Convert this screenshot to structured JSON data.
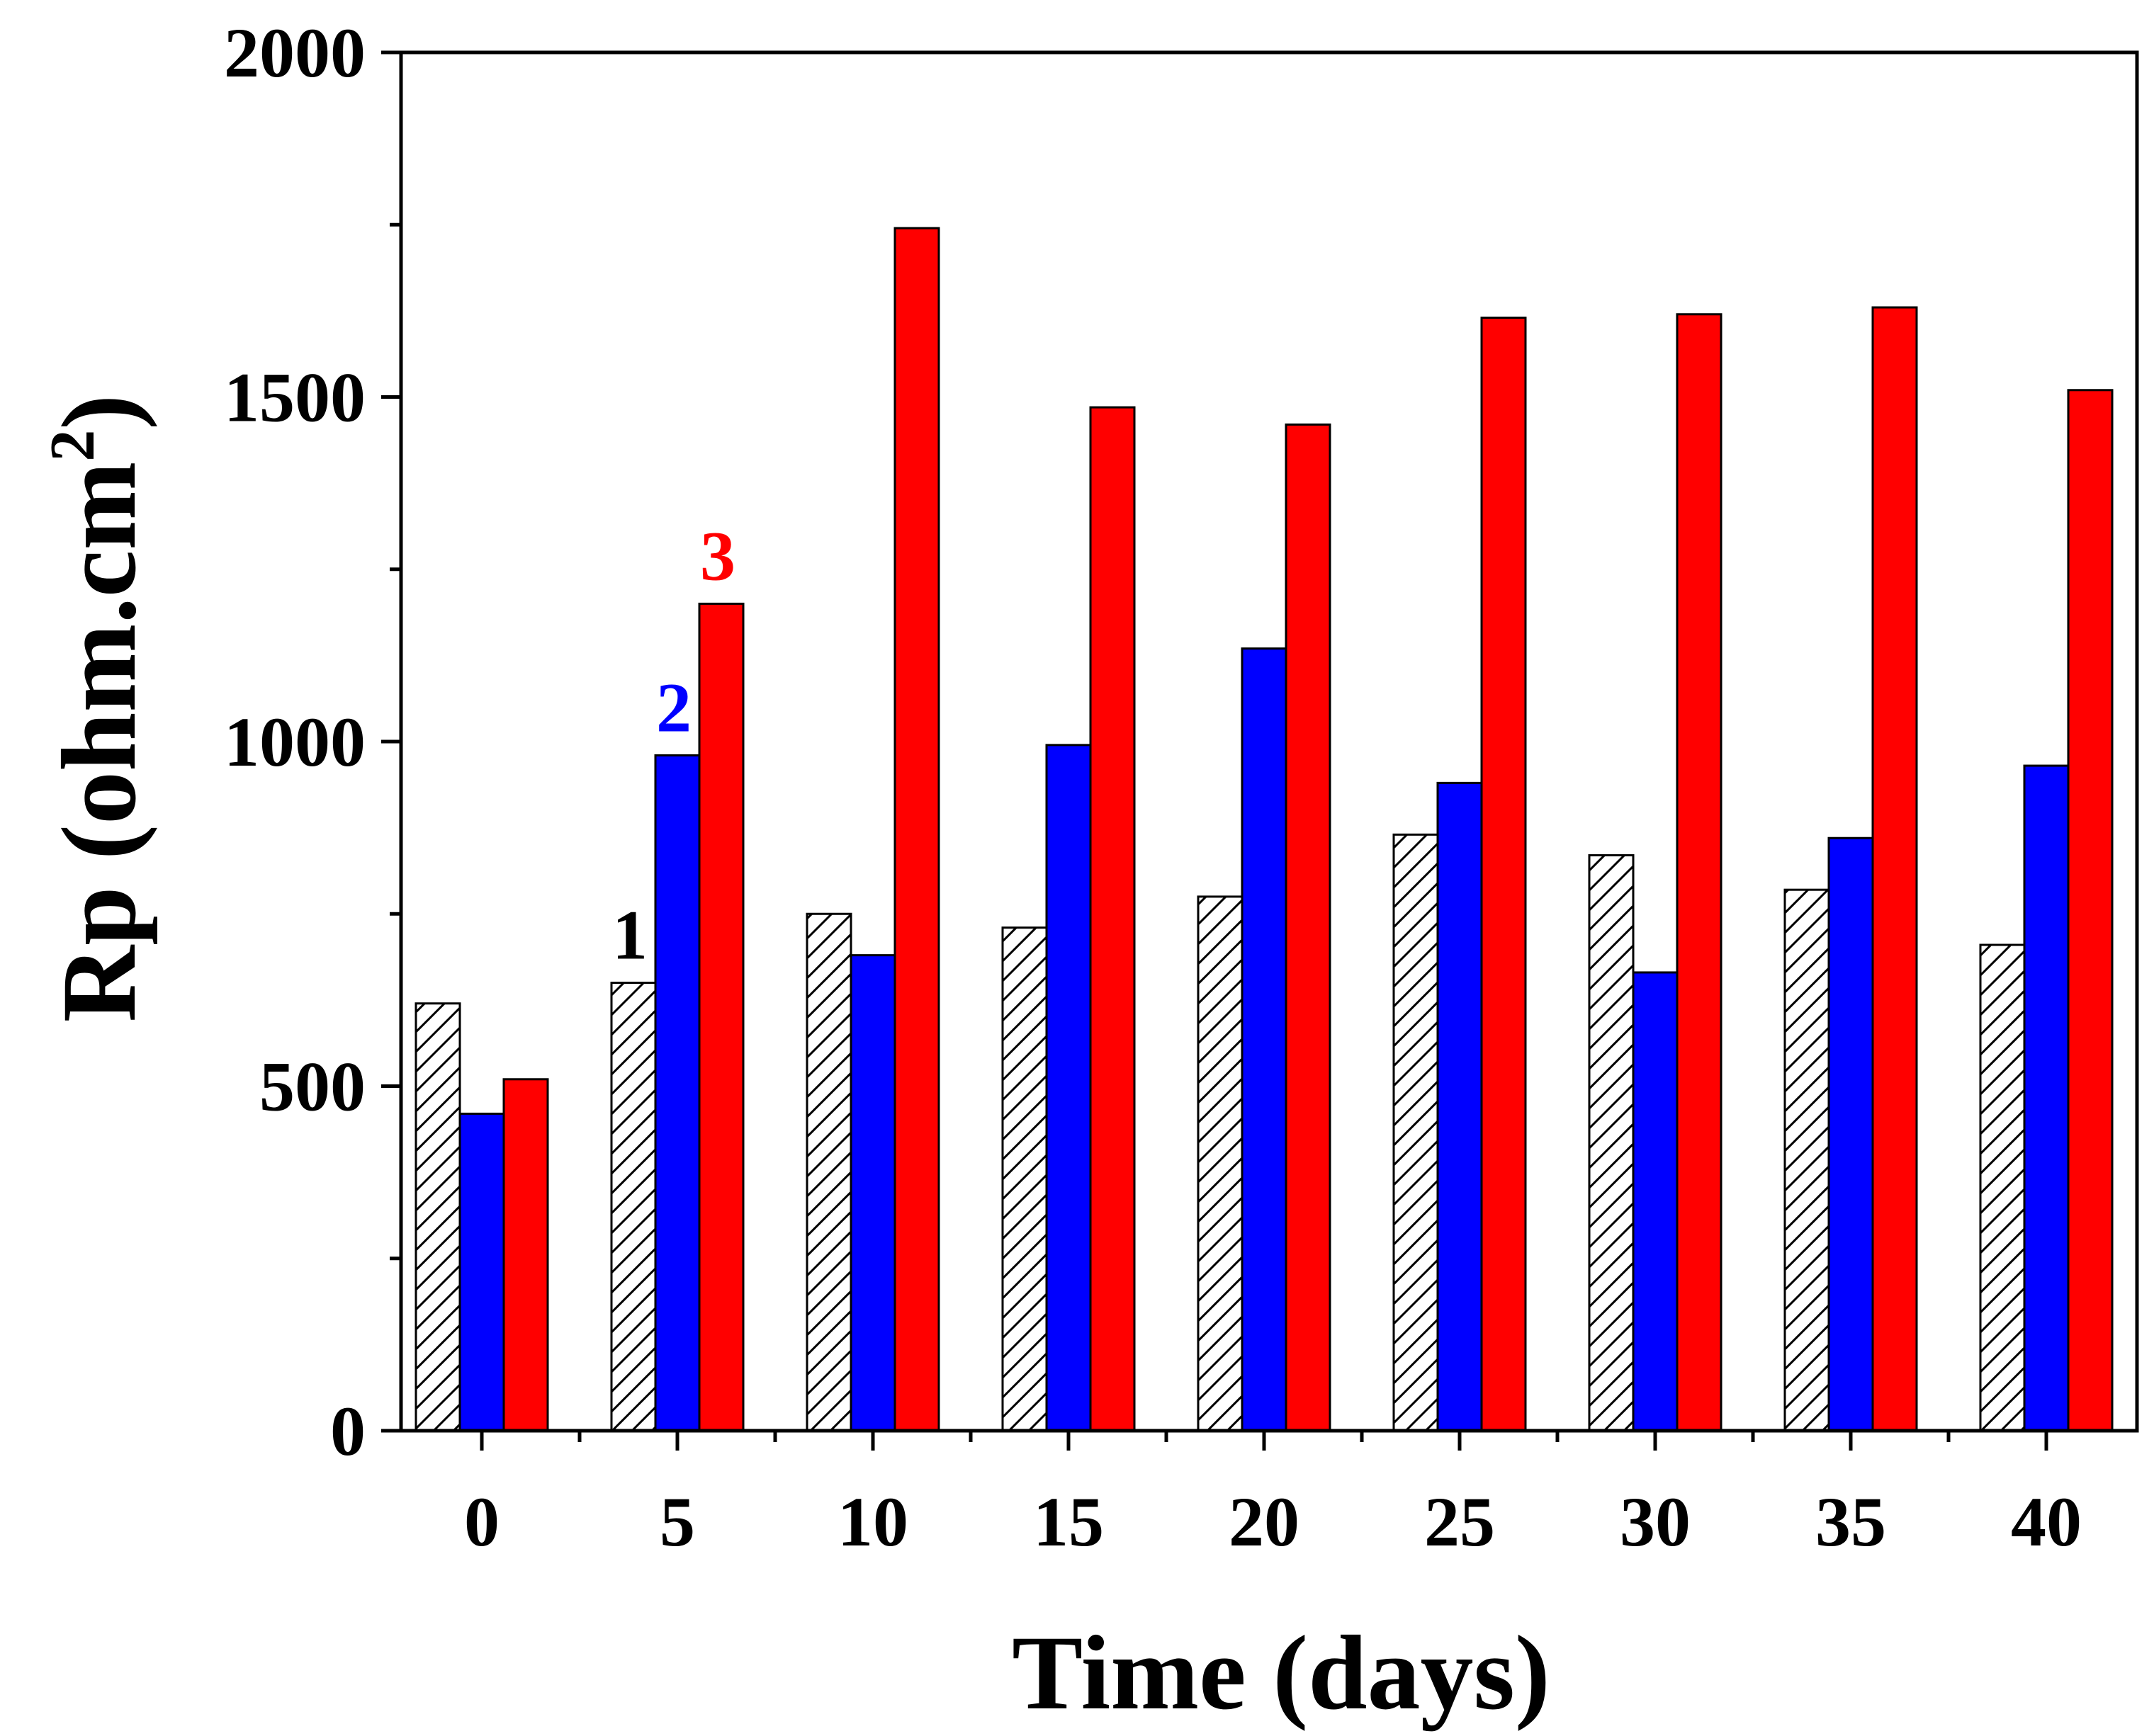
{
  "chart_data": {
    "type": "bar",
    "title": "",
    "xlabel": "Time (days)",
    "ylabel_main": "Rp (ohm.cm",
    "ylabel_sup": "2",
    "ylabel_close": ")",
    "categories": [
      "0",
      "5",
      "10",
      "15",
      "20",
      "25",
      "30",
      "35",
      "40"
    ],
    "ylim": [
      0,
      2000
    ],
    "yticks": [
      "0",
      "500",
      "1000",
      "1500",
      "2000"
    ],
    "series": [
      {
        "name": "1",
        "style": "hatched",
        "color": "#000000",
        "fill": "#ffffff",
        "values": [
          620,
          650,
          750,
          730,
          775,
          865,
          835,
          785,
          705
        ]
      },
      {
        "name": "2",
        "style": "solid",
        "color": "#0000ff",
        "fill": "#0000ff",
        "values": [
          460,
          980,
          690,
          995,
          1135,
          940,
          665,
          860,
          965
        ]
      },
      {
        "name": "3",
        "style": "solid",
        "color": "#ff0000",
        "fill": "#ff0000",
        "values": [
          510,
          1200,
          1745,
          1485,
          1460,
          1615,
          1620,
          1630,
          1510
        ]
      }
    ],
    "series_tags_at_category": "5",
    "grid": false,
    "legend": "none"
  }
}
